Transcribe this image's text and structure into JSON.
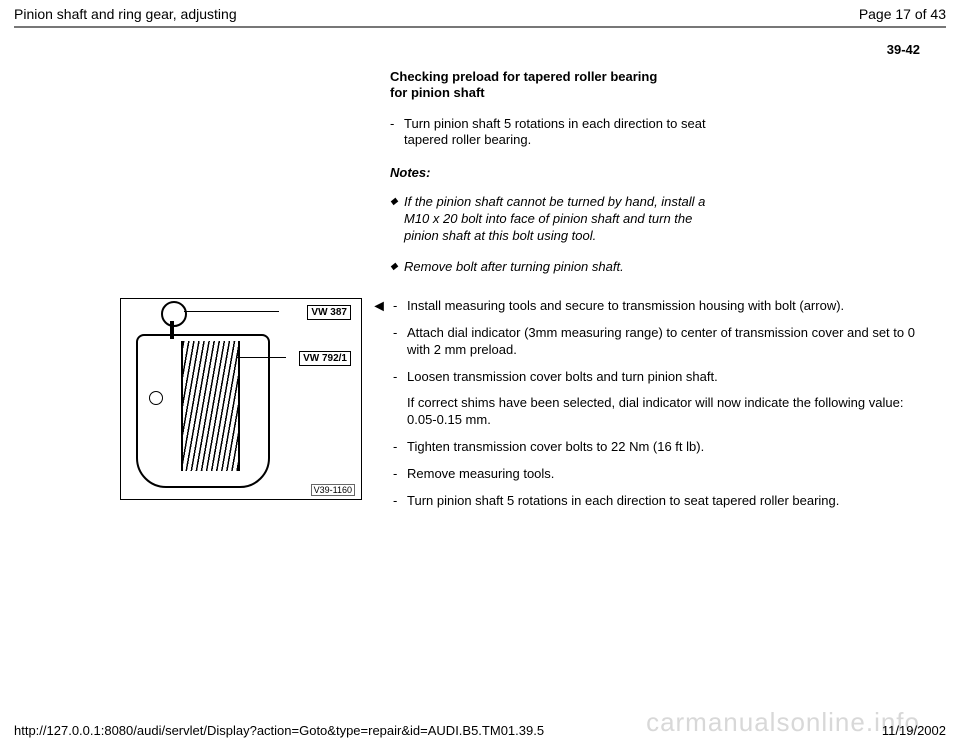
{
  "header": {
    "title": "Pinion shaft and ring gear, adjusting",
    "page_of": "Page 17 of 43"
  },
  "section_number": "39-42",
  "upper": {
    "heading_line1": "Checking preload for tapered roller bearing",
    "heading_line2": "for pinion shaft",
    "step1": "Turn pinion shaft 5 rotations in each direction to seat tapered roller bearing.",
    "notes_label": "Notes:",
    "note1": "If the pinion shaft cannot be turned by hand, install a M10 x 20 bolt into face of pinion shaft and turn the pinion shaft at this bolt using tool.",
    "note2": "Remove bolt after turning pinion shaft."
  },
  "figure": {
    "label1": "VW 387",
    "label2": "VW 792/1",
    "id": "V39-1160"
  },
  "lower": {
    "s1": "Install measuring tools and secure to transmission housing with bolt (arrow).",
    "s2": "Attach dial indicator (3mm measuring range) to center of transmission cover and set to 0 with 2 mm preload.",
    "s3": "Loosen transmission cover bolts and turn pinion shaft.",
    "s3b": "If correct shims have been selected, dial indicator will now indicate the following value: 0.05-0.15 mm.",
    "s4": "Tighten transmission cover bolts to 22 Nm (16 ft lb).",
    "s5": "Remove measuring tools.",
    "s6": "Turn pinion shaft 5 rotations in each direction to seat tapered roller bearing."
  },
  "footer": {
    "url": "http://127.0.0.1:8080/audi/servlet/Display?action=Goto&type=repair&id=AUDI.B5.TM01.39.5",
    "date": "11/19/2002"
  },
  "watermark": "carmanualsonline.info"
}
